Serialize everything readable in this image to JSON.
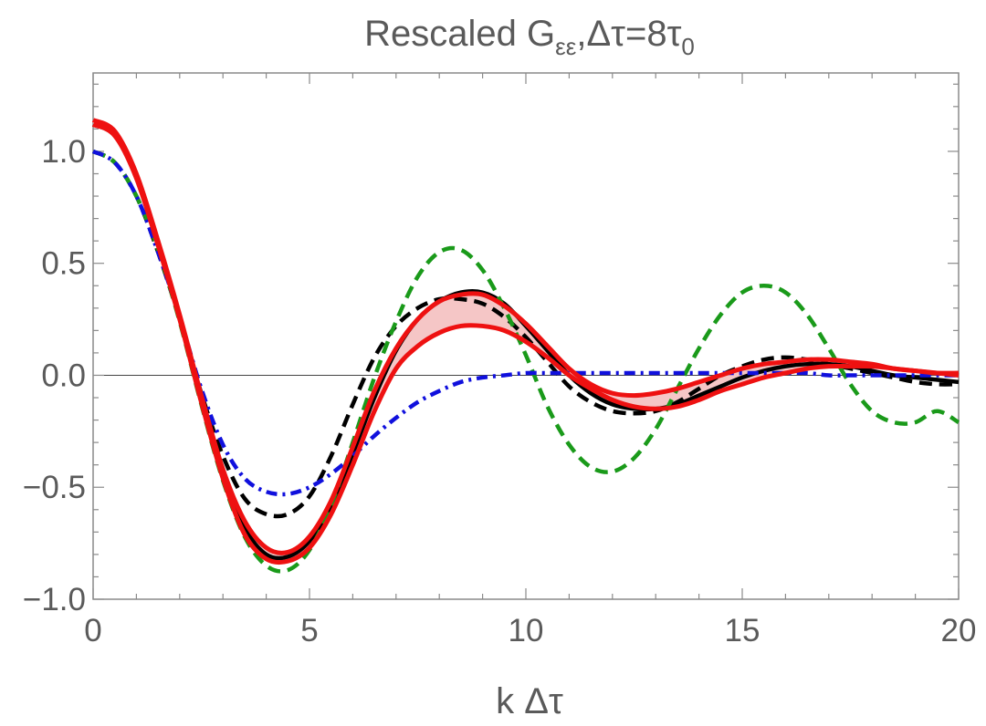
{
  "chart_data": {
    "type": "line",
    "title": {
      "prefix": "Rescaled G",
      "subscript": "εε",
      "middle": ",Δτ=8τ",
      "tail_subscript": "0"
    },
    "xlabel": "k Δτ",
    "ylabel": "",
    "xlim": [
      0,
      20
    ],
    "ylim": [
      -1.0,
      1.35
    ],
    "xticks": [
      0,
      5,
      10,
      15,
      20
    ],
    "xtick_labels": [
      "0",
      "5",
      "10",
      "15",
      "20"
    ],
    "yticks": [
      -1.0,
      -0.5,
      0.0,
      0.5,
      1.0
    ],
    "ytick_labels": [
      "−1.0",
      "−0.5",
      "0.0",
      "0.5",
      "1.0"
    ],
    "grid": false,
    "zero_line": true,
    "band": {
      "name": "red band",
      "color": "#f5c6c6",
      "edge_color": "#ee1111",
      "x": [
        0,
        0.5,
        1,
        1.5,
        2,
        2.5,
        3,
        3.5,
        4,
        4.5,
        5,
        5.5,
        6,
        6.5,
        7,
        7.5,
        8,
        8.5,
        9,
        9.5,
        10,
        10.5,
        11,
        11.5,
        12,
        12.5,
        13,
        13.5,
        14,
        14.5,
        15,
        15.5,
        16,
        16.5,
        17,
        17.5,
        18,
        18.5,
        19,
        19.5,
        20
      ],
      "upper": [
        1.14,
        1.09,
        0.9,
        0.6,
        0.27,
        -0.09,
        -0.42,
        -0.65,
        -0.77,
        -0.79,
        -0.72,
        -0.56,
        -0.32,
        -0.07,
        0.12,
        0.25,
        0.33,
        0.36,
        0.36,
        0.31,
        0.23,
        0.13,
        0.03,
        -0.04,
        -0.08,
        -0.09,
        -0.08,
        -0.06,
        -0.03,
        0.0,
        0.03,
        0.05,
        0.06,
        0.07,
        0.07,
        0.06,
        0.05,
        0.03,
        0.02,
        0.01,
        0.01
      ],
      "lower": [
        1.12,
        1.07,
        0.88,
        0.58,
        0.25,
        -0.12,
        -0.46,
        -0.71,
        -0.82,
        -0.83,
        -0.77,
        -0.62,
        -0.4,
        -0.16,
        0.03,
        0.13,
        0.19,
        0.22,
        0.22,
        0.2,
        0.15,
        0.08,
        0.0,
        -0.06,
        -0.11,
        -0.14,
        -0.15,
        -0.14,
        -0.11,
        -0.07,
        -0.04,
        -0.01,
        0.01,
        0.03,
        0.04,
        0.04,
        0.04,
        0.03,
        0.02,
        0.01,
        0.0
      ]
    },
    "series": [
      {
        "name": "solid black",
        "color": "#000000",
        "style": "solid",
        "x": [
          0,
          0.5,
          1,
          1.5,
          2,
          2.5,
          3,
          3.5,
          4,
          4.5,
          5,
          5.5,
          6,
          6.5,
          7,
          7.5,
          8,
          8.5,
          9,
          9.5,
          10,
          10.5,
          11,
          11.5,
          12,
          12.5,
          13,
          13.5,
          14,
          14.5,
          15,
          15.5,
          16,
          16.5,
          17,
          17.5,
          18,
          18.5,
          19,
          19.5,
          20
        ],
        "y": [
          1.12,
          1.07,
          0.89,
          0.59,
          0.26,
          -0.1,
          -0.44,
          -0.68,
          -0.8,
          -0.81,
          -0.74,
          -0.58,
          -0.35,
          -0.1,
          0.11,
          0.25,
          0.33,
          0.37,
          0.37,
          0.32,
          0.22,
          0.11,
          0.0,
          -0.08,
          -0.13,
          -0.15,
          -0.15,
          -0.13,
          -0.09,
          -0.05,
          -0.01,
          0.02,
          0.04,
          0.05,
          0.05,
          0.04,
          0.02,
          0.0,
          -0.01,
          -0.02,
          -0.03
        ]
      },
      {
        "name": "dashed black",
        "color": "#000000",
        "style": "dashed",
        "x": [
          0,
          0.5,
          1,
          1.5,
          2,
          2.5,
          3,
          3.5,
          4,
          4.5,
          5,
          5.5,
          6,
          6.5,
          7,
          7.5,
          8,
          8.5,
          9,
          9.5,
          10,
          10.5,
          11,
          11.5,
          12,
          12.5,
          13,
          13.5,
          14,
          14.5,
          15,
          15.5,
          16,
          16.5,
          17,
          17.5,
          18,
          18.5,
          19,
          19.5,
          20
        ],
        "y": [
          1.0,
          0.95,
          0.8,
          0.55,
          0.25,
          -0.08,
          -0.36,
          -0.55,
          -0.62,
          -0.62,
          -0.54,
          -0.36,
          -0.13,
          0.08,
          0.22,
          0.3,
          0.34,
          0.34,
          0.32,
          0.26,
          0.17,
          0.06,
          -0.05,
          -0.12,
          -0.16,
          -0.17,
          -0.16,
          -0.12,
          -0.06,
          0.0,
          0.04,
          0.07,
          0.08,
          0.07,
          0.05,
          0.03,
          0.01,
          -0.01,
          -0.03,
          -0.04,
          -0.04
        ]
      },
      {
        "name": "dashed green",
        "color": "#1a9a1a",
        "style": "dashed",
        "x": [
          0,
          0.5,
          1,
          1.5,
          2,
          2.5,
          3,
          3.5,
          4,
          4.5,
          5,
          5.5,
          6,
          6.5,
          7,
          7.5,
          8,
          8.5,
          9,
          9.5,
          10,
          10.5,
          11,
          11.5,
          12,
          12.5,
          13,
          13.5,
          14,
          14.5,
          15,
          15.5,
          16,
          16.5,
          17,
          17.5,
          18,
          18.5,
          19,
          19.5,
          20
        ],
        "y": [
          1.0,
          0.95,
          0.8,
          0.56,
          0.24,
          -0.13,
          -0.47,
          -0.72,
          -0.85,
          -0.87,
          -0.78,
          -0.58,
          -0.3,
          -0.01,
          0.24,
          0.44,
          0.55,
          0.56,
          0.47,
          0.3,
          0.09,
          -0.14,
          -0.31,
          -0.41,
          -0.43,
          -0.37,
          -0.24,
          -0.06,
          0.12,
          0.27,
          0.37,
          0.4,
          0.37,
          0.27,
          0.12,
          -0.04,
          -0.16,
          -0.21,
          -0.21,
          -0.16,
          -0.21
        ]
      },
      {
        "name": "dot-dashed blue",
        "color": "#1010dd",
        "style": "dotdash",
        "x": [
          0,
          0.5,
          1,
          1.5,
          2,
          2.5,
          3,
          3.5,
          4,
          4.5,
          5,
          5.5,
          6,
          6.5,
          7,
          7.5,
          8,
          8.5,
          9,
          9.5,
          10,
          10.5,
          11,
          11.5,
          12,
          12.5,
          13,
          13.5,
          14,
          14.5,
          15,
          15.5,
          16,
          16.5,
          17,
          17.5,
          18,
          18.5,
          19,
          19.5,
          20
        ],
        "y": [
          1.0,
          0.95,
          0.8,
          0.55,
          0.26,
          -0.06,
          -0.31,
          -0.46,
          -0.52,
          -0.53,
          -0.5,
          -0.44,
          -0.36,
          -0.27,
          -0.19,
          -0.12,
          -0.07,
          -0.03,
          -0.01,
          0.0,
          0.01,
          0.01,
          0.01,
          0.01,
          0.01,
          0.01,
          0.01,
          0.01,
          0.01,
          0.01,
          0.01,
          0.01,
          0.01,
          0.01,
          0.0,
          0.0,
          0.0,
          0.0,
          0.0,
          0.0,
          0.0
        ]
      }
    ]
  }
}
